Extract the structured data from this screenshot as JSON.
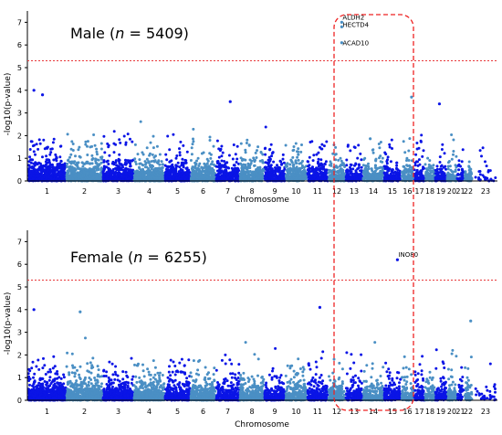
{
  "chart_data": [
    {
      "type": "scatter",
      "subtype": "manhattan",
      "title": "Male",
      "title_stat": "n",
      "title_value": "5409",
      "xlabel": "Chromosome",
      "ylabel": "-log10(p-value)",
      "ylim": [
        0,
        7.5
      ],
      "yticks": [
        0,
        1,
        2,
        3,
        4,
        5,
        6,
        7
      ],
      "significance_threshold": 5.3,
      "chromosome_labels": [
        "1",
        "2",
        "3",
        "4",
        "5",
        "6",
        "7",
        "8",
        "9",
        "10",
        "11",
        "12",
        "13",
        "14",
        "15",
        "16",
        "17",
        "18",
        "19",
        "20",
        "21",
        "22",
        "23"
      ],
      "highlight_chromosomes": [
        "12"
      ],
      "annotations": [
        {
          "label": "ALDH2",
          "chromosome": "12",
          "y": 7.0
        },
        {
          "label": "HECTD4",
          "chromosome": "12",
          "y": 6.8
        },
        {
          "label": "ACAD10",
          "chromosome": "12",
          "y": 6.1
        }
      ],
      "series": [
        {
          "color": "#0a14e6",
          "chromosomes": [
            "1",
            "3",
            "5",
            "7",
            "9",
            "11",
            "13",
            "15",
            "17",
            "19",
            "21",
            "23"
          ]
        },
        {
          "color": "#4a8fc4",
          "chromosomes": [
            "2",
            "4",
            "6",
            "8",
            "10",
            "12",
            "14",
            "16",
            "18",
            "20",
            "22"
          ]
        }
      ],
      "peaks": [
        {
          "chromosome": "1",
          "y": 4.0
        },
        {
          "chromosome": "1",
          "y": 3.8
        },
        {
          "chromosome": "7",
          "y": 3.5
        },
        {
          "chromosome": "16",
          "y": 3.7
        },
        {
          "chromosome": "19",
          "y": 3.4
        }
      ]
    },
    {
      "type": "scatter",
      "subtype": "manhattan",
      "title": "Female",
      "title_stat": "n",
      "title_value": "6255",
      "xlabel": "Chromosome",
      "ylabel": "-log10(p-value)",
      "ylim": [
        0,
        7.5
      ],
      "yticks": [
        0,
        1,
        2,
        3,
        4,
        5,
        6,
        7
      ],
      "significance_threshold": 5.3,
      "chromosome_labels": [
        "1",
        "2",
        "3",
        "4",
        "5",
        "6",
        "7",
        "8",
        "9",
        "10",
        "11",
        "12",
        "13",
        "14",
        "15",
        "16",
        "17",
        "18",
        "19",
        "20",
        "21",
        "22",
        "23"
      ],
      "highlight_chromosomes": [
        "12"
      ],
      "annotations": [
        {
          "label": "INO80",
          "chromosome": "15",
          "y": 6.2
        }
      ],
      "series": [
        {
          "color": "#0a14e6",
          "chromosomes": [
            "1",
            "3",
            "5",
            "7",
            "9",
            "11",
            "13",
            "15",
            "17",
            "19",
            "21",
            "23"
          ]
        },
        {
          "color": "#4a8fc4",
          "chromosomes": [
            "2",
            "4",
            "6",
            "8",
            "10",
            "12",
            "14",
            "16",
            "18",
            "20",
            "22"
          ]
        }
      ],
      "peaks": [
        {
          "chromosome": "1",
          "y": 4.0
        },
        {
          "chromosome": "2",
          "y": 3.9
        },
        {
          "chromosome": "11",
          "y": 4.1
        },
        {
          "chromosome": "22",
          "y": 3.5
        }
      ]
    }
  ],
  "colors": {
    "threshold": "#e8383a",
    "highlight_box": "#ee2222",
    "axis": "#000000"
  }
}
